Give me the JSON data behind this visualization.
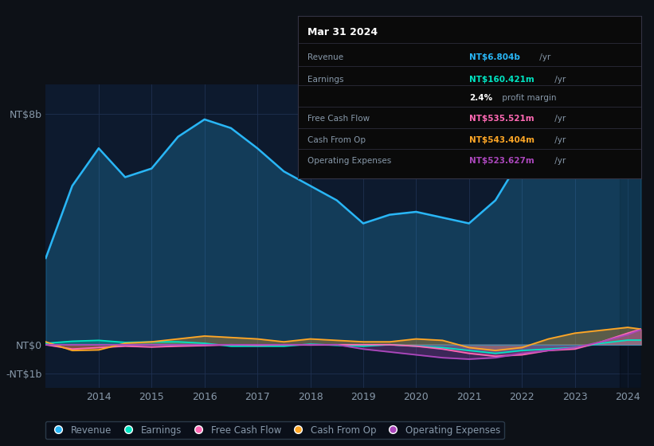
{
  "bg_color": "#0d1117",
  "plot_bg_color": "#0d1a2e",
  "grid_color": "#1e3050",
  "text_color": "#8899aa",
  "years": [
    2013.0,
    2013.5,
    2014.0,
    2014.5,
    2015.0,
    2015.5,
    2016.0,
    2016.5,
    2017.0,
    2017.5,
    2018.0,
    2018.5,
    2019.0,
    2019.5,
    2020.0,
    2020.5,
    2021.0,
    2021.5,
    2022.0,
    2022.5,
    2023.0,
    2023.5,
    2024.0,
    2024.25
  ],
  "revenue": [
    3.0,
    5.5,
    6.8,
    5.8,
    6.1,
    7.2,
    7.8,
    7.5,
    6.8,
    6.0,
    5.5,
    5.0,
    4.2,
    4.5,
    4.6,
    4.4,
    4.2,
    5.0,
    6.5,
    7.2,
    6.5,
    6.0,
    6.8,
    6.8
  ],
  "earnings": [
    0.05,
    0.12,
    0.15,
    0.08,
    0.1,
    0.1,
    0.05,
    -0.05,
    -0.05,
    -0.05,
    0.02,
    -0.02,
    -0.05,
    0.0,
    -0.05,
    -0.1,
    -0.2,
    -0.3,
    -0.2,
    -0.15,
    -0.1,
    0.05,
    0.16,
    0.16
  ],
  "free_cash_flow": [
    0.0,
    -0.15,
    -0.1,
    -0.05,
    -0.08,
    -0.05,
    -0.03,
    0.0,
    -0.02,
    0.0,
    -0.01,
    0.0,
    0.0,
    0.0,
    -0.05,
    -0.15,
    -0.3,
    -0.4,
    -0.35,
    -0.2,
    -0.15,
    0.1,
    0.4,
    0.54
  ],
  "cash_from_op": [
    0.1,
    -0.2,
    -0.18,
    0.05,
    0.1,
    0.2,
    0.3,
    0.25,
    0.2,
    0.1,
    0.2,
    0.15,
    0.1,
    0.1,
    0.2,
    0.15,
    -0.1,
    -0.2,
    -0.1,
    0.2,
    0.4,
    0.5,
    0.6,
    0.54
  ],
  "operating_expenses": [
    0.0,
    0.0,
    0.0,
    0.0,
    0.0,
    0.0,
    0.0,
    0.0,
    0.0,
    0.0,
    0.0,
    0.0,
    -0.15,
    -0.25,
    -0.35,
    -0.45,
    -0.5,
    -0.45,
    -0.3,
    -0.2,
    -0.1,
    0.1,
    0.35,
    0.52
  ],
  "revenue_color": "#29b6f6",
  "earnings_color": "#00e5c3",
  "free_cash_flow_color": "#ff69b4",
  "cash_from_op_color": "#ffa726",
  "operating_expenses_color": "#ab47bc",
  "ylim_top": 9.0,
  "ylim_bottom": -1.5,
  "xtick_years": [
    2014,
    2015,
    2016,
    2017,
    2018,
    2019,
    2020,
    2021,
    2022,
    2023,
    2024
  ],
  "legend_labels": [
    "Revenue",
    "Earnings",
    "Free Cash Flow",
    "Cash From Op",
    "Operating Expenses"
  ],
  "legend_colors": [
    "#29b6f6",
    "#00e5c3",
    "#ff69b4",
    "#ffa726",
    "#ab47bc"
  ],
  "tooltip_title": "Mar 31 2024",
  "tooltip_bg": "#0a0a0a",
  "tooltip_border": "#333344",
  "tooltip_rows": [
    {
      "label": "Revenue",
      "value": "NT$6.804b",
      "value_color": "#29b6f6",
      "suffix": " /yr"
    },
    {
      "label": "Earnings",
      "value": "NT$160.421m",
      "value_color": "#00e5c3",
      "suffix": " /yr"
    },
    {
      "label": "",
      "value": "2.4%",
      "value_color": "#ffffff",
      "suffix": " profit margin",
      "suffix_color": "#8899aa"
    },
    {
      "label": "Free Cash Flow",
      "value": "NT$535.521m",
      "value_color": "#ff69b4",
      "suffix": " /yr"
    },
    {
      "label": "Cash From Op",
      "value": "NT$543.404m",
      "value_color": "#ffa726",
      "suffix": " /yr"
    },
    {
      "label": "Operating Expenses",
      "value": "NT$523.627m",
      "value_color": "#ab47bc",
      "suffix": " /yr"
    }
  ]
}
